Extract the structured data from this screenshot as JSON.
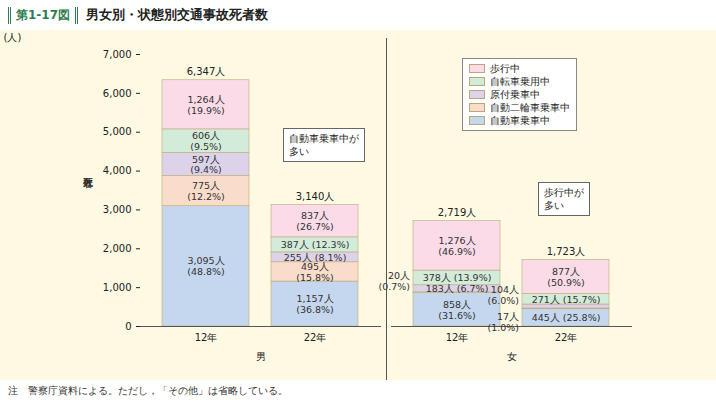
{
  "chart_data": {
    "type": "bar",
    "stacked": true,
    "data_labels": true,
    "grid": false,
    "legend": "top-right",
    "figure_number": "第1-17図",
    "title": "男女別・状態別交通事故死者数",
    "ylabel": "死者数",
    "yunit": "(人)",
    "categories": [
      "12年",
      "22年",
      "12年",
      "22年"
    ],
    "groups": [
      "男",
      "男",
      "女",
      "女"
    ],
    "series": [
      {
        "name": "自動車乗車中",
        "color": "#c5d7ee",
        "values": [
          3095,
          1157,
          858,
          445
        ],
        "value_labels": [
          "3,095人 (48.8%)",
          "1,157人 (36.8%)",
          "858人 (31.6%)",
          "445人 (25.8%)"
        ]
      },
      {
        "name": "自動二輪車乗車中",
        "color": "#fadccb",
        "values": [
          775,
          495,
          20,
          17
        ],
        "value_labels": [
          "775人 (12.2%)",
          "495人 (15.8%)",
          "20人 (0.7%)",
          "17人 (1.0%)"
        ]
      },
      {
        "name": "原付乗車中",
        "color": "#dcd2ea",
        "values": [
          597,
          255,
          183,
          104
        ],
        "value_labels": [
          "597人 (9.4%)",
          "255人 (8.1%)",
          "183人 (6.7%)",
          "104人 (6.0%)"
        ]
      },
      {
        "name": "自転車乗用中",
        "color": "#d3ebd9",
        "values": [
          606,
          387,
          378,
          271
        ],
        "value_labels": [
          "606人 (9.5%)",
          "387人 (12.3%)",
          "378人 (13.9%)",
          "271人 (15.7%)"
        ]
      },
      {
        "name": "歩行中",
        "color": "#fadbe7",
        "values": [
          1264,
          837,
          1276,
          877
        ],
        "value_labels": [
          "1,264人 (19.9%)",
          "837人 (26.7%)",
          "1,276人 (46.9%)",
          "877人 (50.9%)"
        ]
      }
    ],
    "totals": [
      6347,
      3140,
      2719,
      1723
    ],
    "total_labels": [
      "6,347人",
      "3,140人",
      "2,719人",
      "1,723人"
    ],
    "annotations": [
      {
        "text": "自動車乗車中が\n多い",
        "group": "男"
      },
      {
        "text": "歩行中が\n多い",
        "group": "女"
      }
    ],
    "note": "注　警察庁資料による。ただし，「その他」は省略している。",
    "ylim": [
      0,
      7000
    ],
    "yticks": [
      0,
      {
        "value": 1000,
        "label": "1,000"
      },
      {
        "value": 2000,
        "label": "2,000"
      },
      {
        "value": 3000,
        "label": "3,000"
      },
      {
        "value": 4000,
        "label": "4,000"
      },
      {
        "value": 5000,
        "label": "5,000"
      },
      {
        "value": 6000,
        "label": "6,000"
      },
      {
        "value": 7000,
        "label": "7,000"
      }
    ]
  }
}
